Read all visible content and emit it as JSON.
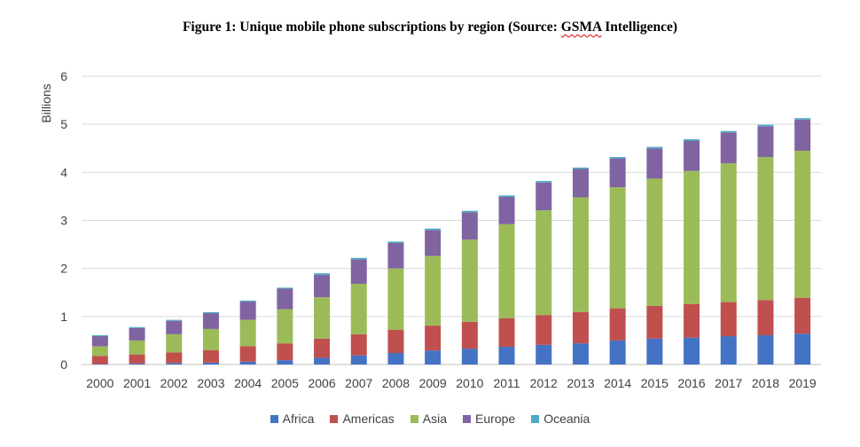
{
  "title": {
    "prefix": "Figure 1: Unique mobile phone subscriptions by region (Source: ",
    "underlined": "GSMA",
    "suffix": " Intelligence)"
  },
  "chart_data": {
    "type": "bar",
    "stacked": true,
    "ylabel": "Billions",
    "ylim": [
      0,
      6
    ],
    "yticks": [
      0,
      1,
      2,
      3,
      4,
      5,
      6
    ],
    "grid": true,
    "legend_position": "bottom",
    "categories": [
      "2000",
      "2001",
      "2002",
      "2003",
      "2004",
      "2005",
      "2006",
      "2007",
      "2008",
      "2009",
      "2010",
      "2011",
      "2012",
      "2013",
      "2014",
      "2015",
      "2016",
      "2017",
      "2018",
      "2019"
    ],
    "series": [
      {
        "name": "Africa",
        "color": "#4472c4",
        "values": [
          0.01,
          0.02,
          0.03,
          0.04,
          0.06,
          0.09,
          0.14,
          0.19,
          0.24,
          0.29,
          0.33,
          0.37,
          0.41,
          0.44,
          0.5,
          0.54,
          0.56,
          0.59,
          0.61,
          0.64
        ]
      },
      {
        "name": "Americas",
        "color": "#c0504d",
        "values": [
          0.17,
          0.19,
          0.22,
          0.26,
          0.32,
          0.35,
          0.4,
          0.44,
          0.48,
          0.52,
          0.56,
          0.59,
          0.62,
          0.65,
          0.67,
          0.68,
          0.7,
          0.71,
          0.73,
          0.75
        ]
      },
      {
        "name": "Asia",
        "color": "#9bbb59",
        "values": [
          0.2,
          0.29,
          0.38,
          0.44,
          0.55,
          0.71,
          0.86,
          1.05,
          1.28,
          1.45,
          1.71,
          1.96,
          2.18,
          2.39,
          2.52,
          2.65,
          2.77,
          2.89,
          2.98,
          3.06
        ]
      },
      {
        "name": "Europe",
        "color": "#8064a2",
        "values": [
          0.21,
          0.26,
          0.28,
          0.33,
          0.38,
          0.43,
          0.47,
          0.51,
          0.53,
          0.54,
          0.57,
          0.57,
          0.58,
          0.59,
          0.6,
          0.63,
          0.63,
          0.64,
          0.64,
          0.65
        ]
      },
      {
        "name": "Oceania",
        "color": "#4bacc6",
        "values": [
          0.02,
          0.02,
          0.02,
          0.02,
          0.02,
          0.02,
          0.03,
          0.03,
          0.03,
          0.03,
          0.03,
          0.03,
          0.03,
          0.03,
          0.03,
          0.03,
          0.03,
          0.03,
          0.03,
          0.03
        ]
      }
    ]
  }
}
